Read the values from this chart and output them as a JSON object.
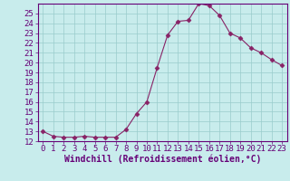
{
  "x": [
    0,
    1,
    2,
    3,
    4,
    5,
    6,
    7,
    8,
    9,
    10,
    11,
    12,
    13,
    14,
    15,
    16,
    17,
    18,
    19,
    20,
    21,
    22,
    23
  ],
  "y": [
    13,
    12.5,
    12.4,
    12.4,
    12.5,
    12.4,
    12.4,
    12.4,
    13.2,
    14.8,
    16.0,
    19.5,
    22.8,
    24.2,
    24.3,
    26.0,
    25.8,
    24.8,
    23.0,
    22.5,
    21.5,
    21.0,
    20.3,
    19.7
  ],
  "line_color": "#882266",
  "marker": "D",
  "marker_size": 2.5,
  "bg_color": "#c8ecec",
  "grid_color": "#99cccc",
  "xlabel": "Windchill (Refroidissement éolien,°C)",
  "xlim": [
    -0.5,
    23.5
  ],
  "ylim": [
    12,
    26
  ],
  "yticks": [
    12,
    13,
    14,
    15,
    16,
    17,
    18,
    19,
    20,
    21,
    22,
    23,
    24,
    25
  ],
  "xticks": [
    0,
    1,
    2,
    3,
    4,
    5,
    6,
    7,
    8,
    9,
    10,
    11,
    12,
    13,
    14,
    15,
    16,
    17,
    18,
    19,
    20,
    21,
    22,
    23
  ],
  "tick_color": "#660077",
  "label_color": "#660077",
  "axis_color": "#660077",
  "font_size": 6.5,
  "xlabel_font_size": 7
}
